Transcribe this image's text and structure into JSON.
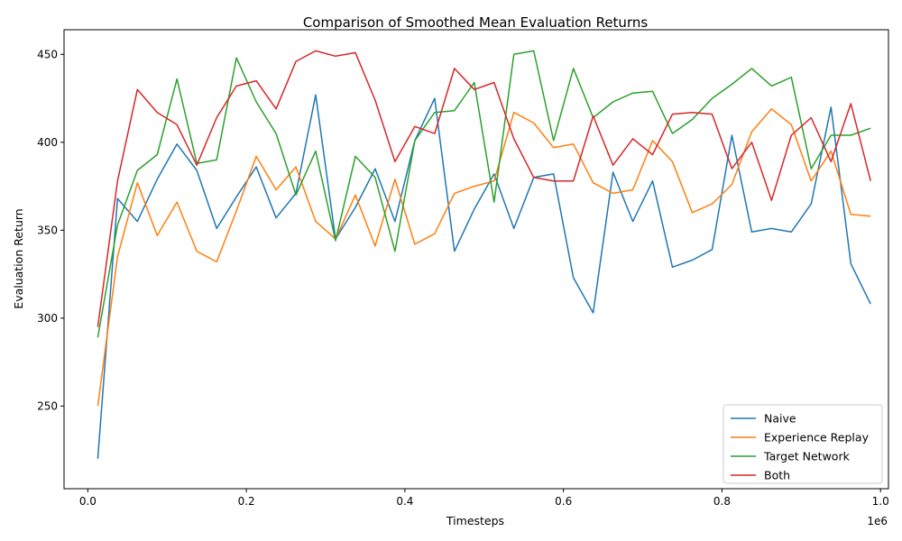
{
  "chart_data": {
    "type": "line",
    "title": "Comparison of Smoothed Mean Evaluation Returns",
    "xlabel": "Timesteps",
    "ylabel": "Evaluation Return",
    "x_offset_label": "1e6",
    "xlim": [
      -0.03,
      1.01
    ],
    "ylim": [
      203,
      464
    ],
    "xticks": [
      0.0,
      0.2,
      0.4,
      0.6,
      0.8,
      1.0
    ],
    "xtick_labels": [
      "0.0",
      "0.2",
      "0.4",
      "0.6",
      "0.8",
      "1.0"
    ],
    "yticks": [
      250,
      300,
      350,
      400,
      450
    ],
    "ytick_labels": [
      "250",
      "300",
      "350",
      "400",
      "450"
    ],
    "grid": false,
    "legend_position": "lower-right",
    "x": [
      0.0125,
      0.0375,
      0.0625,
      0.0875,
      0.1125,
      0.1375,
      0.1625,
      0.1875,
      0.2125,
      0.2375,
      0.2625,
      0.2875,
      0.3125,
      0.3375,
      0.3625,
      0.3875,
      0.4125,
      0.4375,
      0.4625,
      0.4875,
      0.5125,
      0.5375,
      0.5625,
      0.5875,
      0.6125,
      0.6375,
      0.6625,
      0.6875,
      0.7125,
      0.7375,
      0.7625,
      0.7875,
      0.8125,
      0.8375,
      0.8625,
      0.8875,
      0.9125,
      0.9375,
      0.9625,
      0.9875
    ],
    "series": [
      {
        "name": "Naive",
        "color": "#1f77b4",
        "values": [
          220,
          368,
          355,
          379,
          399,
          384,
          351,
          369,
          386,
          357,
          371,
          427,
          345,
          363,
          385,
          355,
          401,
          425,
          338,
          362,
          382,
          351,
          380,
          382,
          323,
          303,
          383,
          355,
          378,
          329,
          333,
          339,
          404,
          349,
          351,
          349,
          365,
          420,
          331,
          308
        ]
      },
      {
        "name": "Experience Replay",
        "color": "#ff7f0e",
        "values": [
          250,
          335,
          377,
          347,
          366,
          338,
          332,
          361,
          392,
          373,
          386,
          355,
          345,
          370,
          341,
          379,
          342,
          348,
          371,
          375,
          378,
          417,
          411,
          397,
          399,
          377,
          371,
          373,
          401,
          389,
          360,
          365,
          376,
          406,
          419,
          410,
          378,
          395,
          359,
          358
        ]
      },
      {
        "name": "Target Network",
        "color": "#2ca02c",
        "values": [
          289,
          353,
          384,
          393,
          436,
          388,
          390,
          448,
          423,
          405,
          370,
          395,
          344,
          392,
          380,
          338,
          401,
          417,
          418,
          434,
          366,
          450,
          452,
          401,
          442,
          414,
          423,
          428,
          429,
          405,
          413,
          425,
          433,
          442,
          432,
          437,
          385,
          404,
          404,
          408
        ]
      },
      {
        "name": "Both",
        "color": "#d62728",
        "values": [
          295,
          378,
          430,
          417,
          410,
          387,
          414,
          432,
          435,
          419,
          446,
          452,
          449,
          451,
          424,
          389,
          409,
          405,
          442,
          430,
          434,
          402,
          380,
          378,
          378,
          415,
          387,
          402,
          393,
          416,
          417,
          416,
          385,
          400,
          367,
          404,
          414,
          389,
          422,
          378
        ]
      }
    ]
  }
}
